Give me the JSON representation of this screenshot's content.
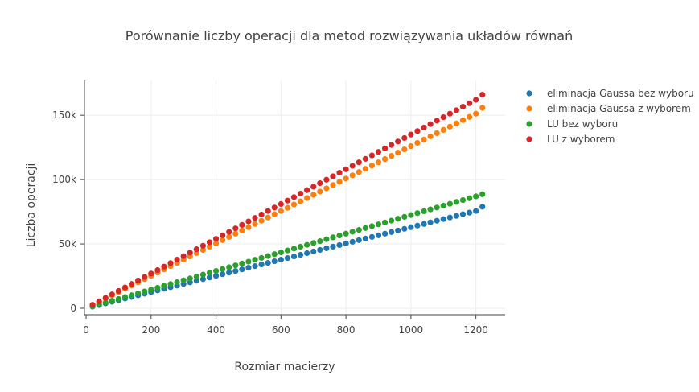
{
  "chart_data": {
    "type": "scatter",
    "title": "Porównanie liczby operacji dla metod rozwiązywania układów równań",
    "xlabel": "Rozmiar macierzy",
    "ylabel": "Liczba operacji",
    "xlim": [
      -5,
      1290
    ],
    "ylim": [
      -5000,
      177000
    ],
    "xticks": [
      0,
      200,
      400,
      600,
      800,
      1000,
      1200
    ],
    "xtick_labels": [
      "0",
      "200",
      "400",
      "600",
      "800",
      "1000",
      "1200"
    ],
    "yticks": [
      0,
      50000,
      100000,
      150000
    ],
    "ytick_labels": [
      "0",
      "50k",
      "100k",
      "150k"
    ],
    "grid": true,
    "legend_position": "top-right",
    "x": [
      20,
      40,
      60,
      80,
      100,
      120,
      140,
      160,
      180,
      200,
      220,
      240,
      260,
      280,
      300,
      320,
      340,
      360,
      380,
      400,
      420,
      440,
      460,
      480,
      500,
      520,
      540,
      560,
      580,
      600,
      620,
      640,
      660,
      680,
      700,
      720,
      740,
      760,
      780,
      800,
      820,
      840,
      860,
      880,
      900,
      920,
      940,
      960,
      980,
      1000,
      1020,
      1040,
      1060,
      1080,
      1100,
      1120,
      1140,
      1160,
      1180,
      1200,
      1220
    ],
    "series": [
      {
        "name": "eliminacja Gaussa bez wyboru",
        "color": "#1f77b4",
        "values": [
          1260,
          2520,
          3780,
          5040,
          6300,
          7560,
          8820,
          10080,
          11340,
          12600,
          13860,
          15120,
          16380,
          17640,
          18900,
          20160,
          21420,
          22680,
          23940,
          25200,
          26460,
          27720,
          28980,
          30240,
          31500,
          32760,
          34020,
          35280,
          36540,
          37800,
          39060,
          40320,
          41580,
          42840,
          44100,
          45360,
          46620,
          47880,
          49140,
          50400,
          51660,
          52920,
          54180,
          55440,
          56700,
          57960,
          59220,
          60480,
          61740,
          63000,
          64260,
          65520,
          66780,
          68040,
          69300,
          70560,
          71820,
          73080,
          74340,
          75600,
          78900
        ]
      },
      {
        "name": "eliminacja Gaussa z wyborem",
        "color": "#ff7f0e",
        "values": [
          2500,
          5000,
          7560,
          10080,
          12600,
          15120,
          17640,
          20160,
          22680,
          25200,
          27720,
          30240,
          32760,
          35280,
          37800,
          40320,
          42840,
          45360,
          47880,
          50400,
          52920,
          55440,
          57960,
          60480,
          63000,
          65520,
          68040,
          70560,
          73080,
          75600,
          78120,
          80640,
          83160,
          85680,
          88200,
          90720,
          93240,
          95760,
          98280,
          100800,
          103320,
          105840,
          108360,
          110880,
          113400,
          115920,
          118440,
          120960,
          123480,
          126000,
          128520,
          131040,
          133560,
          136080,
          138600,
          141120,
          143640,
          146160,
          148680,
          151200,
          155800
        ]
      },
      {
        "name": "LU bez wyboru",
        "color": "#2ca02c",
        "values": [
          1450,
          2900,
          4350,
          5800,
          7250,
          8700,
          10150,
          11600,
          13050,
          14500,
          15950,
          17400,
          18850,
          20300,
          21750,
          23200,
          24650,
          26100,
          27550,
          29000,
          30450,
          31900,
          33350,
          34800,
          36250,
          37700,
          39150,
          40600,
          42050,
          43500,
          44950,
          46400,
          47850,
          49300,
          50750,
          52200,
          53650,
          55100,
          56550,
          58000,
          59450,
          60900,
          62350,
          63800,
          65250,
          66700,
          68150,
          69600,
          71050,
          72500,
          73950,
          75400,
          76850,
          78300,
          79750,
          81200,
          82650,
          84100,
          85550,
          87000,
          88600
        ]
      },
      {
        "name": "LU z wyborem",
        "color": "#d62728",
        "values": [
          2700,
          5400,
          8100,
          10800,
          13500,
          16200,
          18900,
          21600,
          24300,
          27000,
          29700,
          32400,
          35100,
          37800,
          40500,
          43200,
          45900,
          48600,
          51300,
          54000,
          56700,
          59400,
          62100,
          64800,
          67500,
          70200,
          72900,
          75600,
          78300,
          81000,
          83700,
          86400,
          89100,
          91800,
          94500,
          97200,
          99900,
          102600,
          105300,
          108000,
          110700,
          113400,
          116100,
          118800,
          121500,
          124200,
          126900,
          129600,
          132300,
          135000,
          137700,
          140400,
          143100,
          145800,
          148500,
          151200,
          153900,
          156600,
          159300,
          162000,
          166000
        ]
      }
    ]
  }
}
